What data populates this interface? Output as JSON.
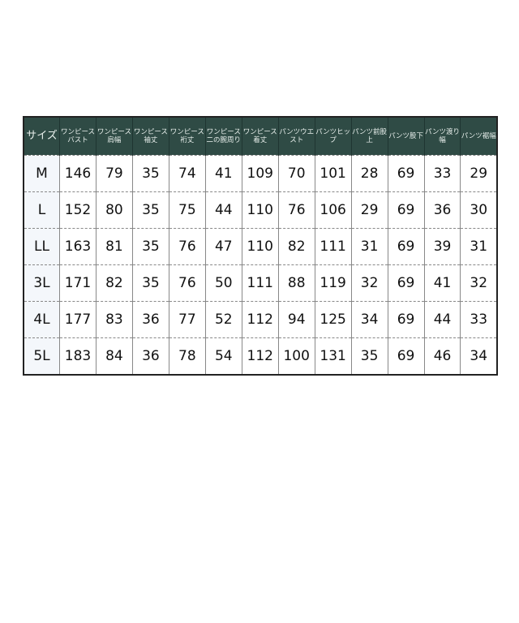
{
  "table": {
    "size_header": "サイズ",
    "headers": [
      "ワンピースバスト",
      "ワンピース肩幅",
      "ワンピース袖丈",
      "ワンピース裄丈",
      "ワンピース二の腕周り",
      "ワンピース着丈",
      "パンツウエスト",
      "パンツヒップ",
      "パンツ前股上",
      "パンツ股下",
      "パンツ渡り幅",
      "パンツ裾幅"
    ],
    "rows": [
      {
        "size": "M",
        "values": [
          "146",
          "79",
          "35",
          "74",
          "41",
          "109",
          "70",
          "101",
          "28",
          "69",
          "33",
          "29"
        ]
      },
      {
        "size": "L",
        "values": [
          "152",
          "80",
          "35",
          "75",
          "44",
          "110",
          "76",
          "106",
          "29",
          "69",
          "36",
          "30"
        ]
      },
      {
        "size": "LL",
        "values": [
          "163",
          "81",
          "35",
          "76",
          "47",
          "110",
          "82",
          "111",
          "31",
          "69",
          "39",
          "31"
        ]
      },
      {
        "size": "3L",
        "values": [
          "171",
          "82",
          "35",
          "76",
          "50",
          "111",
          "88",
          "119",
          "32",
          "69",
          "41",
          "32"
        ]
      },
      {
        "size": "4L",
        "values": [
          "177",
          "83",
          "36",
          "77",
          "52",
          "112",
          "94",
          "125",
          "34",
          "69",
          "44",
          "33"
        ]
      },
      {
        "size": "5L",
        "values": [
          "183",
          "84",
          "36",
          "78",
          "54",
          "112",
          "100",
          "131",
          "35",
          "69",
          "46",
          "34"
        ]
      }
    ]
  }
}
